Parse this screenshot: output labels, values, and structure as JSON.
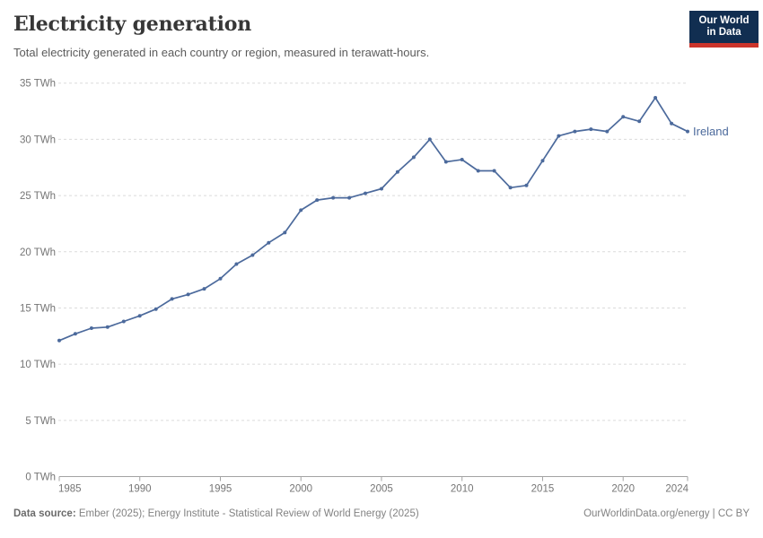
{
  "header": {
    "title": "Electricity generation",
    "subtitle": "Total electricity generated in each country or region, measured in terawatt-hours.",
    "logo": {
      "line1": "Our World",
      "line2": "in Data"
    }
  },
  "chart_data": {
    "type": "line",
    "title": "Electricity generation",
    "xlabel": "",
    "ylabel": "",
    "xlim": [
      1985,
      2024
    ],
    "ylim": [
      0,
      35
    ],
    "x_ticks": [
      1985,
      1990,
      1995,
      2000,
      2005,
      2010,
      2015,
      2020,
      2024
    ],
    "y_ticks": [
      0,
      5,
      10,
      15,
      20,
      25,
      30,
      35
    ],
    "y_tick_suffix": " TWh",
    "grid": "horizontal-dashed",
    "legend_position": "end-of-line-label",
    "x": [
      1985,
      1986,
      1987,
      1988,
      1989,
      1990,
      1991,
      1992,
      1993,
      1994,
      1995,
      1996,
      1997,
      1998,
      1999,
      2000,
      2001,
      2002,
      2003,
      2004,
      2005,
      2006,
      2007,
      2008,
      2009,
      2010,
      2011,
      2012,
      2013,
      2014,
      2015,
      2016,
      2017,
      2018,
      2019,
      2020,
      2021,
      2022,
      2023,
      2024
    ],
    "series": [
      {
        "name": "Ireland",
        "color": "#4C6A9C",
        "values": [
          12.1,
          12.7,
          13.2,
          13.3,
          13.8,
          14.3,
          14.9,
          15.8,
          16.2,
          16.7,
          17.6,
          18.9,
          19.7,
          20.8,
          21.7,
          23.7,
          24.6,
          24.8,
          24.8,
          25.2,
          25.6,
          27.1,
          28.4,
          30.0,
          28.0,
          28.2,
          27.2,
          27.2,
          25.7,
          25.9,
          28.1,
          30.3,
          30.7,
          30.9,
          30.7,
          32.0,
          31.6,
          33.7,
          31.4,
          30.7
        ]
      }
    ]
  },
  "colors": {
    "line": "#4C6A9C",
    "gridline": "#dbdbdb",
    "axis": "#a3a3a3",
    "tick_label": "#757575",
    "logo_bg": "#112e51",
    "logo_stripe": "#cb342b"
  },
  "footer": {
    "source_label": "Data source:",
    "source_text": " Ember (2025); Energy Institute - Statistical Review of World Energy (2025)",
    "credit": "OurWorldinData.org/energy | CC BY"
  }
}
